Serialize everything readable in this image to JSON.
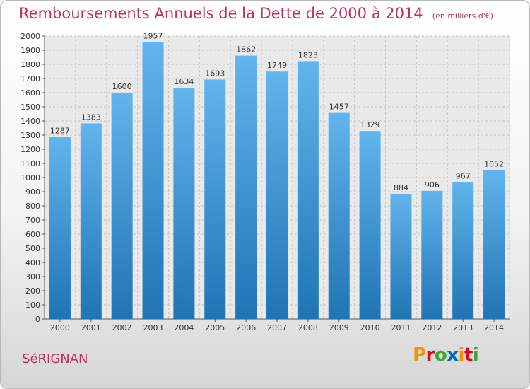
{
  "header": {
    "title": "Remboursements Annuels de la Dette de 2000 à 2014",
    "unit": "(en milliers d'€)"
  },
  "footer": {
    "city": "SéRIGNAN",
    "logo_text": "Proxiti",
    "logo_colors": [
      "#f29400",
      "#e2001a",
      "#3aaa35",
      "#0069b4",
      "#f29400",
      "#e2001a",
      "#3aaa35"
    ]
  },
  "chart_data": {
    "type": "bar",
    "title": "Remboursements Annuels de la Dette de 2000 à 2014",
    "subtitle": "(en milliers d'€)",
    "xlabel": "",
    "ylabel": "",
    "categories": [
      "2000",
      "2001",
      "2002",
      "2003",
      "2004",
      "2005",
      "2006",
      "2007",
      "2008",
      "2009",
      "2010",
      "2011",
      "2012",
      "2013",
      "2014"
    ],
    "values": [
      1287,
      1383,
      1600,
      1957,
      1634,
      1693,
      1862,
      1749,
      1823,
      1457,
      1329,
      884,
      906,
      967,
      1052
    ],
    "ylim": [
      0,
      2000
    ],
    "ytick_step": 100,
    "grid": true,
    "legend": "none",
    "bar_color_top": "#62b4ec",
    "bar_color_bottom": "#1f74b4"
  }
}
